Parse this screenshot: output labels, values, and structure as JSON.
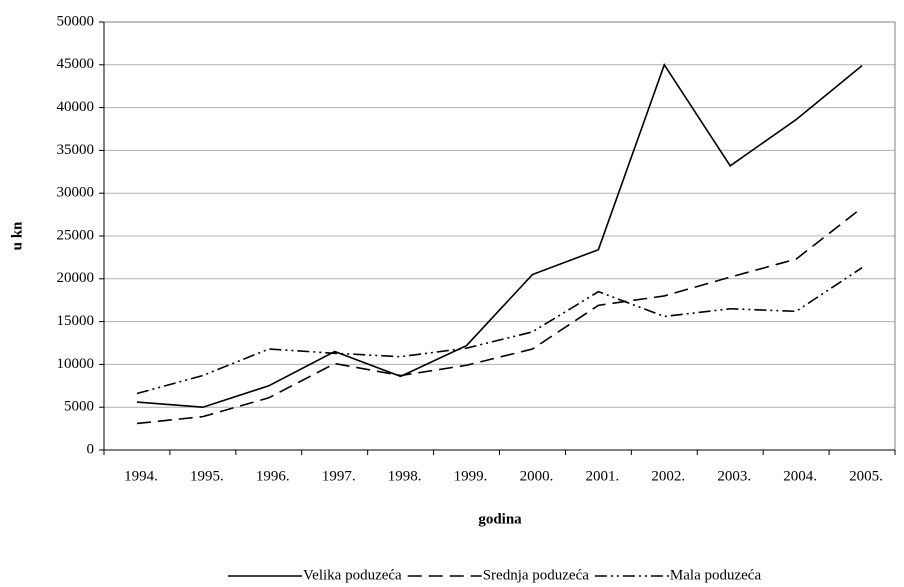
{
  "chart_data": {
    "type": "line",
    "x_label": "godina",
    "y_label": "u kn",
    "categories": [
      "1994.",
      "1995.",
      "1996.",
      "1997.",
      "1998.",
      "1999.",
      "2000.",
      "2001.",
      "2002.",
      "2003.",
      "2004.",
      "2005."
    ],
    "series": [
      {
        "name": "Velika poduzeća",
        "color": "#000000",
        "dash": "none",
        "values": [
          5600,
          5000,
          7500,
          11500,
          8600,
          12200,
          20500,
          23400,
          45000,
          33200,
          38600,
          44900
        ]
      },
      {
        "name": "Srednja poduzeća",
        "color": "#000000",
        "dash": "14,7",
        "values": [
          3100,
          3900,
          6100,
          10100,
          8700,
          9900,
          11800,
          16900,
          18000,
          20200,
          22300,
          28300
        ]
      },
      {
        "name": "Mala poduzeća",
        "color": "#000000",
        "dash": "12,4,2,4,2,4",
        "values": [
          6600,
          8700,
          11800,
          11300,
          10900,
          11900,
          13800,
          18500,
          15600,
          16500,
          16200,
          21300
        ]
      }
    ],
    "ylim": [
      0,
      50000
    ],
    "yticks": [
      0,
      5000,
      10000,
      15000,
      20000,
      25000,
      30000,
      35000,
      40000,
      45000,
      50000
    ],
    "grid": true,
    "legend": "bottom"
  }
}
